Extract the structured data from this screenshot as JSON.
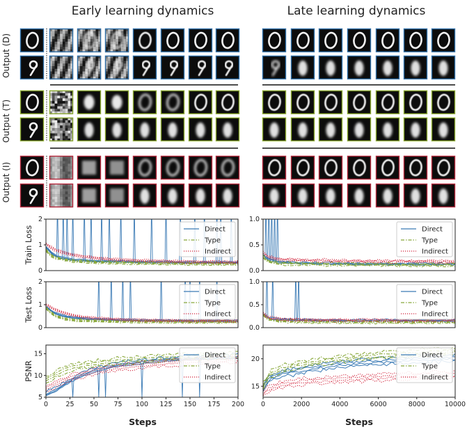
{
  "titles": {
    "left": "Early learning dynamics",
    "right": "Late learning dynamics"
  },
  "row_labels": [
    "Output (D)",
    "Output (T)",
    "Output (I)"
  ],
  "image_grid": {
    "rows": [
      {
        "group": "D",
        "color": "#2f6fa8",
        "digit": "0",
        "early": [
          0.0,
          0.9,
          0.7,
          0.5,
          0.05,
          0.0,
          0.0,
          0.0
        ],
        "late": [
          0.0,
          0.0,
          0.0,
          0.0,
          0.0,
          0.0,
          0.0
        ]
      },
      {
        "group": "D",
        "color": "#2f6fa8",
        "digit": "9",
        "early": [
          0.0,
          0.9,
          0.7,
          0.5,
          0.1,
          0.05,
          0.05,
          0.05
        ],
        "late": [
          0.4,
          0.35,
          0.3,
          0.3,
          0.3,
          0.3,
          0.3
        ]
      },
      {
        "group": "T",
        "color": "#8aa82f",
        "digit": "0",
        "early": [
          0.0,
          1.0,
          0.8,
          0.6,
          0.4,
          0.3,
          0.2,
          0.2
        ],
        "late": [
          0.1,
          0.05,
          0.05,
          0.05,
          0.05,
          0.05,
          0.05
        ]
      },
      {
        "group": "T",
        "color": "#8aa82f",
        "digit": "9",
        "early": [
          0.0,
          1.0,
          0.8,
          0.6,
          0.45,
          0.4,
          0.35,
          0.35
        ],
        "late": [
          0.3,
          0.3,
          0.3,
          0.3,
          0.3,
          0.3,
          0.3
        ]
      },
      {
        "group": "I",
        "color": "#b5283c",
        "digit": "0",
        "early": [
          0.0,
          1.0,
          0.9,
          0.8,
          0.6,
          0.5,
          0.45,
          0.4
        ],
        "late": [
          0.2,
          0.15,
          0.15,
          0.15,
          0.15,
          0.15,
          0.15
        ]
      },
      {
        "group": "I",
        "color": "#b5283c",
        "digit": "9",
        "early": [
          0.0,
          1.0,
          0.9,
          0.8,
          0.65,
          0.55,
          0.5,
          0.45
        ],
        "late": [
          0.3,
          0.3,
          0.3,
          0.3,
          0.3,
          0.3,
          0.3
        ]
      }
    ]
  },
  "legend": [
    "Direct",
    "Type",
    "Indirect"
  ],
  "colors": {
    "Direct": "#3a7ab5",
    "Type": "#88a83a",
    "Indirect": "#d2283f"
  },
  "x_label": "Steps",
  "chart_data": [
    {
      "type": "line",
      "panel": "early-train",
      "ylabel": "Train Loss",
      "xlim": [
        0,
        200
      ],
      "ylim": [
        0,
        2
      ],
      "xticks": [
        0,
        25,
        50,
        75,
        100,
        125,
        150,
        175,
        200
      ],
      "yticks": [
        0,
        1,
        2
      ],
      "x": [
        0,
        5,
        10,
        20,
        30,
        40,
        50,
        60,
        75,
        100,
        125,
        150,
        175,
        200
      ],
      "series": [
        {
          "name": "Direct",
          "values": [
            0.9,
            0.7,
            0.55,
            0.45,
            0.4,
            0.38,
            0.36,
            0.35,
            0.34,
            0.32,
            0.31,
            0.3,
            0.3,
            0.3
          ],
          "spikes": [
            12,
            18,
            22,
            28,
            40,
            47,
            58,
            66,
            78,
            92,
            110,
            125,
            140,
            155,
            165,
            178,
            182,
            193
          ]
        },
        {
          "name": "Type",
          "values": [
            0.8,
            0.6,
            0.5,
            0.42,
            0.37,
            0.35,
            0.33,
            0.32,
            0.31,
            0.29,
            0.28,
            0.27,
            0.26,
            0.26
          ]
        },
        {
          "name": "Indirect",
          "values": [
            1.05,
            0.9,
            0.8,
            0.68,
            0.6,
            0.55,
            0.5,
            0.46,
            0.42,
            0.38,
            0.36,
            0.34,
            0.33,
            0.32
          ]
        }
      ]
    },
    {
      "type": "line",
      "panel": "late-train",
      "ylabel": "",
      "xlim": [
        0,
        10000
      ],
      "ylim": [
        0,
        1
      ],
      "xticks": [
        0,
        2000,
        4000,
        6000,
        8000,
        10000
      ],
      "yticks": [
        0.0,
        0.5,
        1.0
      ],
      "x": [
        0,
        200,
        500,
        1000,
        2000,
        4000,
        6000,
        8000,
        10000
      ],
      "series": [
        {
          "name": "Direct",
          "values": [
            0.3,
            0.22,
            0.18,
            0.16,
            0.14,
            0.13,
            0.12,
            0.12,
            0.12
          ],
          "spikes": [
            150,
            300,
            450,
            600,
            750
          ]
        },
        {
          "name": "Type",
          "values": [
            0.28,
            0.2,
            0.16,
            0.14,
            0.13,
            0.12,
            0.12,
            0.11,
            0.11
          ]
        },
        {
          "name": "Indirect",
          "values": [
            0.35,
            0.28,
            0.24,
            0.22,
            0.2,
            0.19,
            0.18,
            0.18,
            0.17
          ]
        }
      ]
    },
    {
      "type": "line",
      "panel": "early-test",
      "ylabel": "Test Loss",
      "xlim": [
        0,
        200
      ],
      "ylim": [
        0,
        2
      ],
      "xticks": [
        0,
        25,
        50,
        75,
        100,
        125,
        150,
        175,
        200
      ],
      "yticks": [
        0,
        1,
        2
      ],
      "x": [
        0,
        5,
        10,
        20,
        30,
        40,
        50,
        60,
        75,
        100,
        125,
        150,
        175,
        200
      ],
      "series": [
        {
          "name": "Direct",
          "values": [
            0.9,
            0.75,
            0.6,
            0.48,
            0.42,
            0.38,
            0.36,
            0.34,
            0.32,
            0.3,
            0.29,
            0.28,
            0.28,
            0.28
          ],
          "spikes": [
            55,
            68,
            80,
            88,
            120,
            145,
            150,
            160,
            178
          ]
        },
        {
          "name": "Type",
          "values": [
            0.85,
            0.65,
            0.5,
            0.38,
            0.33,
            0.3,
            0.29,
            0.28,
            0.27,
            0.26,
            0.26,
            0.25,
            0.25,
            0.25
          ]
        },
        {
          "name": "Indirect",
          "values": [
            1.0,
            0.88,
            0.78,
            0.62,
            0.52,
            0.46,
            0.42,
            0.39,
            0.36,
            0.32,
            0.31,
            0.3,
            0.3,
            0.29
          ]
        }
      ]
    },
    {
      "type": "line",
      "panel": "late-test",
      "ylabel": "",
      "xlim": [
        0,
        10000
      ],
      "ylim": [
        0,
        1
      ],
      "xticks": [
        0,
        2000,
        4000,
        6000,
        8000,
        10000
      ],
      "yticks": [
        0.0,
        0.5,
        1.0
      ],
      "x": [
        0,
        200,
        500,
        1000,
        2000,
        4000,
        6000,
        8000,
        10000
      ],
      "series": [
        {
          "name": "Direct",
          "values": [
            0.3,
            0.22,
            0.19,
            0.17,
            0.16,
            0.15,
            0.15,
            0.15,
            0.15
          ],
          "spikes": [
            200,
            500,
            1700,
            1850
          ]
        },
        {
          "name": "Type",
          "values": [
            0.28,
            0.2,
            0.16,
            0.14,
            0.13,
            0.12,
            0.12,
            0.12,
            0.12
          ]
        },
        {
          "name": "Indirect",
          "values": [
            0.32,
            0.24,
            0.2,
            0.18,
            0.17,
            0.16,
            0.16,
            0.16,
            0.16
          ]
        }
      ]
    },
    {
      "type": "line",
      "panel": "early-psnr",
      "ylabel": "PSNR",
      "xlim": [
        0,
        200
      ],
      "ylim": [
        5,
        17
      ],
      "xticks": [
        0,
        25,
        50,
        75,
        100,
        125,
        150,
        175,
        200
      ],
      "yticks": [
        5,
        10,
        15
      ],
      "x": [
        0,
        10,
        20,
        30,
        40,
        50,
        60,
        75,
        100,
        125,
        150,
        175,
        200
      ],
      "series": [
        {
          "name": "Direct",
          "values": [
            5.5,
            6.5,
            8.0,
            9.2,
            10.2,
            11.0,
            11.6,
            12.3,
            13.0,
            13.5,
            13.8,
            14.0,
            14.1
          ],
          "spikes": [
            28,
            55,
            62,
            100,
            142,
            160
          ]
        },
        {
          "name": "Type",
          "values": [
            9.0,
            10.2,
            11.4,
            12.0,
            12.4,
            12.7,
            13.0,
            13.3,
            13.7,
            14.0,
            14.3,
            14.5,
            14.6
          ]
        },
        {
          "name": "Indirect",
          "values": [
            7.0,
            8.0,
            9.0,
            9.8,
            10.4,
            10.9,
            11.3,
            11.8,
            12.4,
            12.9,
            13.2,
            13.4,
            13.6
          ]
        }
      ]
    },
    {
      "type": "line",
      "panel": "late-psnr",
      "ylabel": "",
      "xlim": [
        0,
        10000
      ],
      "ylim": [
        13,
        22.5
      ],
      "xticks": [
        0,
        2000,
        4000,
        6000,
        8000,
        10000
      ],
      "yticks": [
        15,
        20
      ],
      "x": [
        0,
        200,
        500,
        1000,
        2000,
        4000,
        6000,
        8000,
        10000
      ],
      "series": [
        {
          "name": "Direct",
          "values": [
            14.5,
            16.0,
            16.8,
            17.3,
            18.0,
            19.0,
            19.5,
            19.9,
            20.1
          ]
        },
        {
          "name": "Type",
          "values": [
            15.0,
            16.5,
            17.5,
            18.2,
            19.0,
            20.0,
            20.6,
            21.0,
            21.4
          ]
        },
        {
          "name": "Indirect",
          "values": [
            13.5,
            14.3,
            14.8,
            15.3,
            15.8,
            16.3,
            16.6,
            16.9,
            17.1
          ]
        }
      ]
    }
  ]
}
